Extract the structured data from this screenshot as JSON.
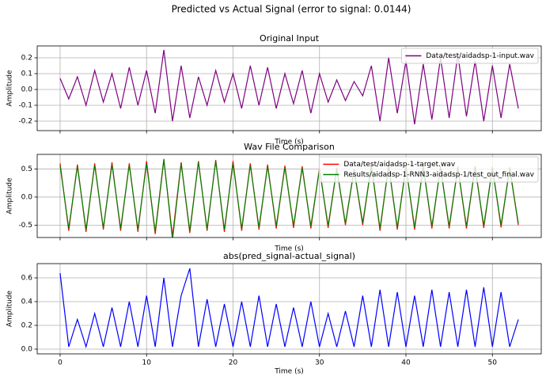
{
  "title": "Predicted vs Actual Signal (error to signal: 0.0144)",
  "chart_data": [
    {
      "type": "line",
      "title": "Original Input",
      "xlabel": "Time (s)",
      "ylabel": "Amplitude",
      "grid": true,
      "legend": "upper right",
      "x": [
        0,
        1,
        2,
        3,
        4,
        5,
        6,
        7,
        8,
        9,
        10,
        11,
        12,
        13,
        14,
        15,
        16,
        17,
        18,
        19,
        20,
        21,
        22,
        23,
        24,
        25,
        26,
        27,
        28,
        29,
        30,
        31,
        32,
        33,
        34,
        35,
        36,
        37,
        38,
        39,
        40,
        41,
        42,
        43,
        44,
        45,
        46,
        47,
        48,
        49,
        50,
        51,
        52,
        53
      ],
      "xlim": [
        -2.65,
        55.65
      ],
      "ylim": [
        -0.26,
        0.275
      ],
      "yticks": [
        -0.2,
        -0.1,
        {
          "value": 0,
          "label": "0.0"
        },
        0.1,
        0.2
      ],
      "series": [
        {
          "name": "Data/test/aidadsp-1-input.wav",
          "color": "#800080",
          "values": [
            0.07,
            -0.06,
            0.08,
            -0.1,
            0.12,
            -0.08,
            0.1,
            -0.12,
            0.14,
            -0.1,
            0.12,
            -0.15,
            0.25,
            -0.2,
            0.15,
            -0.18,
            0.08,
            -0.1,
            0.12,
            -0.08,
            0.1,
            -0.12,
            0.15,
            -0.1,
            0.14,
            -0.12,
            0.1,
            -0.09,
            0.12,
            -0.15,
            0.1,
            -0.08,
            0.06,
            -0.07,
            0.05,
            -0.04,
            0.15,
            -0.2,
            0.2,
            -0.15,
            0.18,
            -0.22,
            0.16,
            -0.19,
            0.2,
            -0.18,
            0.22,
            -0.17,
            0.18,
            -0.2,
            0.15,
            -0.18,
            0.16,
            -0.12
          ]
        }
      ]
    },
    {
      "type": "line",
      "title": "Wav File Comparison",
      "xlabel": "Time (s)",
      "ylabel": "Amplitude",
      "grid": true,
      "legend": "upper right",
      "x": [
        0,
        1,
        2,
        3,
        4,
        5,
        6,
        7,
        8,
        9,
        10,
        11,
        12,
        13,
        14,
        15,
        16,
        17,
        18,
        19,
        20,
        21,
        22,
        23,
        24,
        25,
        26,
        27,
        28,
        29,
        30,
        31,
        32,
        33,
        34,
        35,
        36,
        37,
        38,
        39,
        40,
        41,
        42,
        43,
        44,
        45,
        46,
        47,
        48,
        49,
        50,
        51,
        52,
        53
      ],
      "xlim": [
        -2.65,
        55.65
      ],
      "ylim": [
        -0.72,
        0.76
      ],
      "yticks": [
        -0.5,
        {
          "value": 0,
          "label": "0.0"
        },
        0.5
      ],
      "series": [
        {
          "name": "Data/test/aidadsp-1-target.wav",
          "color": "#ff0000",
          "values": [
            0.6,
            -0.6,
            0.58,
            -0.62,
            0.6,
            -0.58,
            0.62,
            -0.6,
            0.6,
            -0.62,
            0.64,
            -0.66,
            0.66,
            -0.7,
            0.62,
            -0.64,
            0.64,
            -0.6,
            0.66,
            -0.62,
            0.64,
            -0.6,
            0.6,
            -0.58,
            0.58,
            -0.56,
            0.56,
            -0.55,
            0.55,
            -0.56,
            0.52,
            -0.55,
            0.52,
            -0.5,
            0.5,
            -0.5,
            0.58,
            -0.6,
            0.58,
            -0.58,
            0.56,
            -0.58,
            0.56,
            -0.56,
            0.55,
            -0.56,
            0.54,
            -0.56,
            0.55,
            -0.55,
            0.54,
            -0.54,
            0.53,
            -0.5
          ]
        },
        {
          "name": "Results/aidadsp-1-RNN3-aidadsp-1/test_out_final.wav",
          "color": "#008000",
          "values": [
            0.56,
            -0.56,
            0.55,
            -0.58,
            0.57,
            -0.55,
            0.58,
            -0.56,
            0.57,
            -0.58,
            0.6,
            -0.62,
            0.68,
            -0.76,
            0.6,
            -0.6,
            0.62,
            -0.57,
            0.64,
            -0.58,
            0.6,
            -0.56,
            0.57,
            -0.54,
            0.55,
            -0.52,
            0.53,
            -0.51,
            0.52,
            -0.52,
            0.5,
            -0.51,
            0.5,
            -0.47,
            0.48,
            -0.46,
            0.56,
            -0.56,
            0.55,
            -0.54,
            0.53,
            -0.54,
            0.53,
            -0.52,
            0.52,
            -0.52,
            0.51,
            -0.52,
            0.52,
            -0.51,
            0.51,
            -0.5,
            0.5,
            -0.47
          ]
        }
      ]
    },
    {
      "type": "line",
      "title": "abs(pred_signal-actual_signal)",
      "xlabel": "Time (s)",
      "ylabel": "Amplitude",
      "grid": true,
      "x": [
        0,
        1,
        2,
        3,
        4,
        5,
        6,
        7,
        8,
        9,
        10,
        11,
        12,
        13,
        14,
        15,
        16,
        17,
        18,
        19,
        20,
        21,
        22,
        23,
        24,
        25,
        26,
        27,
        28,
        29,
        30,
        31,
        32,
        33,
        34,
        35,
        36,
        37,
        38,
        39,
        40,
        41,
        42,
        43,
        44,
        45,
        46,
        47,
        48,
        49,
        50,
        51,
        52,
        53
      ],
      "xlim": [
        -2.65,
        55.65
      ],
      "ylim": [
        -0.04,
        0.72
      ],
      "xticks": [
        0,
        10,
        20,
        30,
        40,
        50
      ],
      "yticks": [
        {
          "value": 0,
          "label": "0.0"
        },
        {
          "value": 0.2,
          "label": "0.2"
        },
        {
          "value": 0.4,
          "label": "0.4"
        },
        {
          "value": 0.6,
          "label": "0.6"
        }
      ],
      "series": [
        {
          "color": "#0000ff",
          "values": [
            0.64,
            0.02,
            0.25,
            0.02,
            0.3,
            0.02,
            0.35,
            0.02,
            0.4,
            0.02,
            0.45,
            0.02,
            0.6,
            0.02,
            0.45,
            0.68,
            0.02,
            0.42,
            0.02,
            0.38,
            0.02,
            0.4,
            0.02,
            0.45,
            0.02,
            0.38,
            0.02,
            0.35,
            0.02,
            0.4,
            0.02,
            0.3,
            0.02,
            0.32,
            0.02,
            0.45,
            0.02,
            0.5,
            0.02,
            0.48,
            0.02,
            0.45,
            0.02,
            0.5,
            0.02,
            0.48,
            0.02,
            0.5,
            0.02,
            0.52,
            0.02,
            0.48,
            0.02,
            0.25
          ]
        }
      ]
    }
  ]
}
